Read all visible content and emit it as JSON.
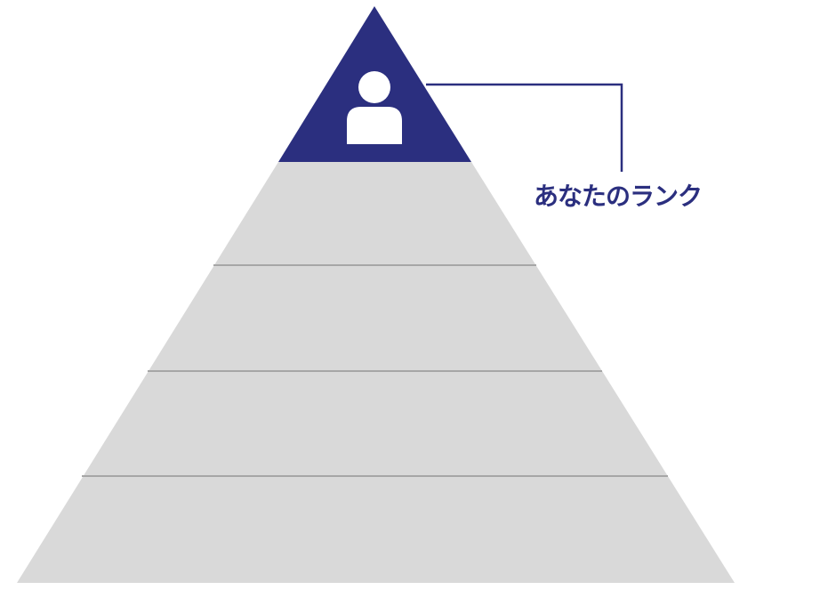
{
  "diagram": {
    "type": "pyramid",
    "tier_count": 5,
    "highlighted_tier": 1,
    "colors": {
      "highlight": "#2b2f7f",
      "tier_fill": "#d9d9d9",
      "tier_divider": "#a6a6a6",
      "icon": "#ffffff",
      "callout_line": "#2b2f7f"
    },
    "top_icon": "person-icon",
    "callout": {
      "label": "あなたのランク"
    }
  }
}
